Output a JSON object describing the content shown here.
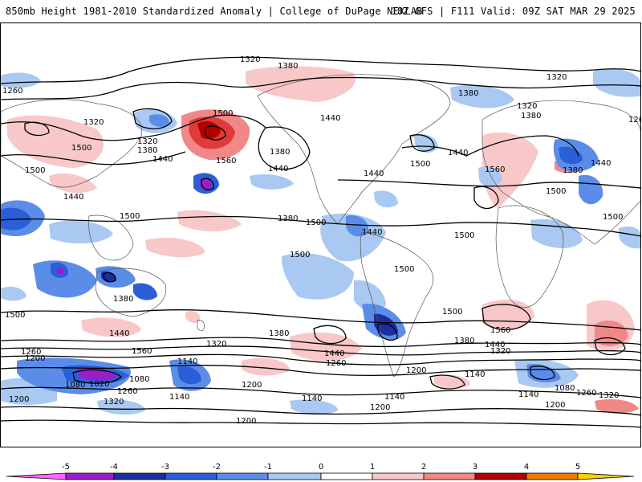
{
  "header": {
    "left_title": "850mb Height 1981-2010 Standardized Anomaly | College of DuPage NEXLAB",
    "right_title": "18Z GFS | F111 Valid: 09Z SAT MAR 29 2025"
  },
  "colorbar": {
    "labels": [
      "-5",
      "-4",
      "-3",
      "-2",
      "-1",
      "0",
      "1",
      "2",
      "3",
      "4",
      "5"
    ],
    "colors": [
      "#ff66ff",
      "#9a1ec8",
      "#1b2e9e",
      "#2a5fd8",
      "#5b8de8",
      "#a9c8f2",
      "#ffffff",
      "#ffffff",
      "#f8c8c8",
      "#f08888",
      "#e03a3a",
      "#b00000",
      "#e87a00",
      "#ffd000"
    ]
  },
  "contour_labels": [
    "1320",
    "1380",
    "1260",
    "1320",
    "1500",
    "1560",
    "1440",
    "1380",
    "1320",
    "1500",
    "1500",
    "1440",
    "1380",
    "1440",
    "1440",
    "1500",
    "1440",
    "1320",
    "1380",
    "1380",
    "1320",
    "1440",
    "1500",
    "1260",
    "1380",
    "1440",
    "1560",
    "1380",
    "1440",
    "1500",
    "1500",
    "1500",
    "1500",
    "1500",
    "1500",
    "1380",
    "1500",
    "1560",
    "1500",
    "1440",
    "1320",
    "1560",
    "1440",
    "1380",
    "1260",
    "1380",
    "1440",
    "1320",
    "1200",
    "1140",
    "1260",
    "1200",
    "1140",
    "1080",
    "1020",
    "1080",
    "1200",
    "1260",
    "1320",
    "1140",
    "1200",
    "1140",
    "1200",
    "1140",
    "1200",
    "1080",
    "1140",
    "1320",
    "1260",
    "1200"
  ]
}
